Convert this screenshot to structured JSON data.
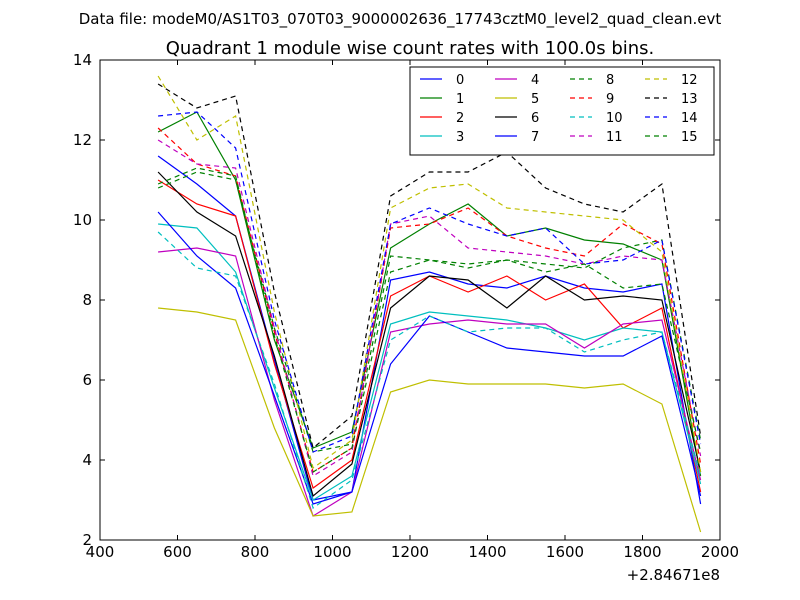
{
  "chart_data": {
    "type": "line",
    "suptitle": "Data file: modeM0/AS1T03_070T03_9000002636_17743cztM0_level2_quad_clean.evt",
    "title": "Quadrant 1 module wise count rates with 100.0s bins.",
    "xlabel": "",
    "ylabel": "",
    "x_offset_label": "+2.84671e8",
    "xlim": [
      400,
      2000
    ],
    "ylim": [
      2,
      14
    ],
    "xticks": [
      400,
      600,
      800,
      1000,
      1200,
      1400,
      1600,
      1800,
      2000
    ],
    "yticks": [
      2,
      4,
      6,
      8,
      10,
      12,
      14
    ],
    "grid": false,
    "legend": {
      "placement": "top-right",
      "columns": 4
    },
    "x": [
      550,
      650,
      750,
      850,
      950,
      1050,
      1150,
      1250,
      1350,
      1450,
      1550,
      1650,
      1750,
      1850,
      1950
    ],
    "series": [
      {
        "name": "0",
        "color": "#0000ff",
        "style": "solid",
        "values": [
          11.6,
          10.9,
          10.1,
          6.5,
          3.0,
          3.2,
          8.5,
          8.7,
          8.4,
          8.3,
          8.6,
          8.3,
          8.2,
          8.4,
          2.9
        ]
      },
      {
        "name": "1",
        "color": "#008000",
        "style": "solid",
        "values": [
          12.2,
          12.7,
          11.0,
          7.0,
          4.3,
          4.7,
          9.3,
          9.9,
          10.4,
          9.6,
          9.8,
          9.5,
          9.4,
          9.0,
          3.6
        ]
      },
      {
        "name": "2",
        "color": "#ff0000",
        "style": "solid",
        "values": [
          11.0,
          10.4,
          10.1,
          6.4,
          3.3,
          4.0,
          8.1,
          8.6,
          8.2,
          8.6,
          8.0,
          8.4,
          7.3,
          7.8,
          3.2
        ]
      },
      {
        "name": "3",
        "color": "#00bfbf",
        "style": "solid",
        "values": [
          9.9,
          9.8,
          8.7,
          5.8,
          3.0,
          3.6,
          7.4,
          7.7,
          7.6,
          7.5,
          7.3,
          7.0,
          7.3,
          7.2,
          3.4
        ]
      },
      {
        "name": "4",
        "color": "#bf00bf",
        "style": "solid",
        "values": [
          9.2,
          9.3,
          9.1,
          5.5,
          2.6,
          3.2,
          7.2,
          7.4,
          7.5,
          7.4,
          7.4,
          6.8,
          7.4,
          7.5,
          3.5
        ]
      },
      {
        "name": "5",
        "color": "#bfbf00",
        "style": "solid",
        "values": [
          7.8,
          7.7,
          7.5,
          4.8,
          2.6,
          2.7,
          5.7,
          6.0,
          5.9,
          5.9,
          5.9,
          5.8,
          5.9,
          5.4,
          2.2
        ]
      },
      {
        "name": "6",
        "color": "#000000",
        "style": "solid",
        "values": [
          11.2,
          10.2,
          9.6,
          6.6,
          3.1,
          3.9,
          7.8,
          8.6,
          8.5,
          7.8,
          8.6,
          8.0,
          8.1,
          8.0,
          3.7
        ]
      },
      {
        "name": "7",
        "color": "#0000ff",
        "style": "solid",
        "values": [
          10.2,
          9.1,
          8.3,
          5.6,
          2.9,
          3.2,
          6.4,
          7.6,
          7.2,
          6.8,
          6.7,
          6.6,
          6.6,
          7.1,
          3.1
        ]
      },
      {
        "name": "8",
        "color": "#008000",
        "style": "dashed",
        "values": [
          10.8,
          11.2,
          11.0,
          7.3,
          4.2,
          4.4,
          9.1,
          9.0,
          8.9,
          9.0,
          8.9,
          8.8,
          9.3,
          9.5,
          4.5
        ]
      },
      {
        "name": "9",
        "color": "#ff0000",
        "style": "dashed",
        "values": [
          12.3,
          11.4,
          11.1,
          7.2,
          3.7,
          4.3,
          9.8,
          9.9,
          10.3,
          9.6,
          9.3,
          9.1,
          9.9,
          9.4,
          3.9
        ]
      },
      {
        "name": "10",
        "color": "#00bfbf",
        "style": "dashed",
        "values": [
          9.7,
          8.8,
          8.6,
          5.9,
          2.8,
          3.5,
          7.0,
          7.6,
          7.2,
          7.3,
          7.3,
          6.7,
          7.0,
          7.2,
          3.6
        ]
      },
      {
        "name": "11",
        "color": "#bf00bf",
        "style": "dashed",
        "values": [
          12.0,
          11.4,
          11.3,
          7.3,
          3.6,
          4.2,
          9.9,
          10.1,
          9.3,
          9.2,
          9.1,
          8.9,
          9.1,
          9.0,
          4.1
        ]
      },
      {
        "name": "12",
        "color": "#bfbf00",
        "style": "dashed",
        "values": [
          13.6,
          12.0,
          12.6,
          7.7,
          3.8,
          4.5,
          10.3,
          10.8,
          10.9,
          10.3,
          10.2,
          10.1,
          10.0,
          9.2,
          3.7
        ]
      },
      {
        "name": "13",
        "color": "#000000",
        "style": "dashed",
        "values": [
          13.4,
          12.8,
          13.1,
          8.2,
          4.3,
          5.1,
          10.6,
          11.2,
          11.2,
          11.7,
          10.8,
          10.4,
          10.2,
          10.9,
          4.6
        ]
      },
      {
        "name": "14",
        "color": "#0000ff",
        "style": "dashed",
        "values": [
          12.6,
          12.7,
          11.8,
          7.5,
          4.2,
          4.6,
          9.9,
          10.3,
          9.9,
          9.6,
          9.8,
          8.9,
          9.0,
          9.5,
          4.4
        ]
      },
      {
        "name": "15",
        "color": "#008000",
        "style": "dashed",
        "values": [
          10.9,
          11.3,
          11.1,
          7.1,
          3.7,
          4.3,
          8.7,
          9.0,
          8.8,
          9.0,
          8.7,
          8.9,
          8.3,
          8.4,
          4.2
        ]
      }
    ]
  }
}
